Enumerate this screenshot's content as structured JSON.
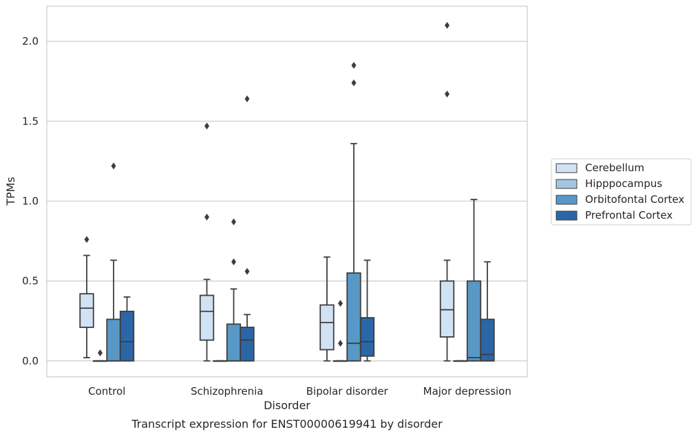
{
  "chart_data": {
    "type": "boxplot",
    "title": "Transcript expression for ENST00000619941 by disorder",
    "xlabel": "Disorder",
    "ylabel": "TPMs",
    "ylim": [
      -0.1,
      2.22
    ],
    "yticks": [
      0.0,
      0.5,
      1.0,
      1.5,
      2.0
    ],
    "ytick_labels": [
      "0.0",
      "0.5",
      "1.0",
      "1.5",
      "2.0"
    ],
    "grid": "horizontal",
    "legend_position": "right",
    "categories": [
      "Control",
      "Schizophrenia",
      "Bipolar disorder",
      "Major depression"
    ],
    "series": [
      {
        "name": "Cerebellum",
        "color": "#d0e2f3",
        "boxes": [
          {
            "whislo": 0.02,
            "q1": 0.21,
            "med": 0.33,
            "q3": 0.42,
            "whishi": 0.66,
            "fliers": [
              0.76
            ]
          },
          {
            "whislo": 0.0,
            "q1": 0.13,
            "med": 0.31,
            "q3": 0.41,
            "whishi": 0.51,
            "fliers": [
              0.9,
              1.47
            ]
          },
          {
            "whislo": 0.0,
            "q1": 0.07,
            "med": 0.24,
            "q3": 0.35,
            "whishi": 0.65,
            "fliers": []
          },
          {
            "whislo": 0.0,
            "q1": 0.15,
            "med": 0.32,
            "q3": 0.5,
            "whishi": 0.63,
            "fliers": [
              1.67,
              2.1
            ]
          }
        ]
      },
      {
        "name": "Hipppocampus",
        "color": "#a3c7e0",
        "boxes": [
          {
            "whislo": 0.0,
            "q1": 0.0,
            "med": 0.0,
            "q3": 0.0,
            "whishi": 0.0,
            "fliers": [
              0.05
            ]
          },
          {
            "whislo": 0.0,
            "q1": 0.0,
            "med": 0.0,
            "q3": 0.0,
            "whishi": 0.0,
            "fliers": []
          },
          {
            "whislo": 0.0,
            "q1": 0.0,
            "med": 0.0,
            "q3": 0.0,
            "whishi": 0.0,
            "fliers": [
              0.11,
              0.36
            ]
          },
          {
            "whislo": 0.0,
            "q1": 0.0,
            "med": 0.0,
            "q3": 0.0,
            "whishi": 0.0,
            "fliers": []
          }
        ]
      },
      {
        "name": "Orbitofontal Cortex",
        "color": "#5898c6",
        "boxes": [
          {
            "whislo": 0.0,
            "q1": 0.0,
            "med": 0.0,
            "q3": 0.26,
            "whishi": 0.63,
            "fliers": [
              1.22
            ]
          },
          {
            "whislo": 0.0,
            "q1": 0.0,
            "med": 0.0,
            "q3": 0.23,
            "whishi": 0.45,
            "fliers": [
              0.62,
              0.87
            ]
          },
          {
            "whislo": 0.0,
            "q1": 0.0,
            "med": 0.11,
            "q3": 0.55,
            "whishi": 1.36,
            "fliers": [
              1.74,
              1.85
            ]
          },
          {
            "whislo": 0.0,
            "q1": 0.0,
            "med": 0.02,
            "q3": 0.5,
            "whishi": 1.01,
            "fliers": []
          }
        ]
      },
      {
        "name": "Prefrontal Cortex",
        "color": "#2b66a6",
        "boxes": [
          {
            "whislo": 0.0,
            "q1": 0.0,
            "med": 0.12,
            "q3": 0.31,
            "whishi": 0.4,
            "fliers": []
          },
          {
            "whislo": 0.0,
            "q1": 0.0,
            "med": 0.13,
            "q3": 0.21,
            "whishi": 0.29,
            "fliers": [
              0.56,
              1.64
            ]
          },
          {
            "whislo": 0.0,
            "q1": 0.03,
            "med": 0.12,
            "q3": 0.27,
            "whishi": 0.63,
            "fliers": []
          },
          {
            "whislo": 0.0,
            "q1": 0.0,
            "med": 0.04,
            "q3": 0.26,
            "whishi": 0.62,
            "fliers": []
          }
        ]
      }
    ]
  }
}
